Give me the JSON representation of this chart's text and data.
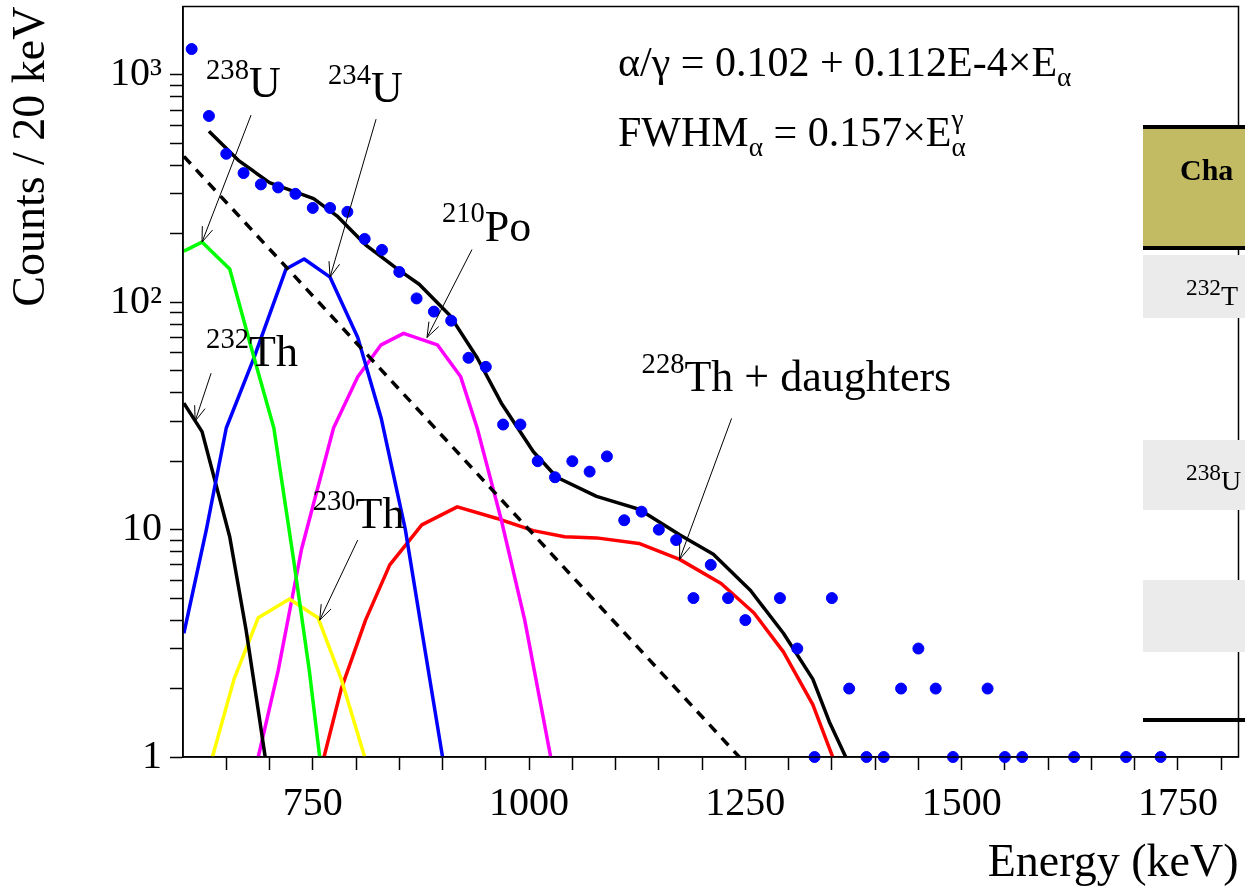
{
  "chart_data": {
    "type": "line",
    "xlabel": "Energy (keV)",
    "ylabel": "Counts / 20 keV",
    "log": "y",
    "grid": false,
    "legend": false,
    "xlim": [
      600,
      1820
    ],
    "xticks": [
      {
        "value": 650,
        "label": null
      },
      {
        "value": 700,
        "label": null
      },
      750,
      {
        "value": 800,
        "label": null
      },
      {
        "value": 850,
        "label": null
      },
      {
        "value": 900,
        "label": null
      },
      {
        "value": 950,
        "label": null
      },
      1000,
      {
        "value": 1050,
        "label": null
      },
      {
        "value": 1100,
        "label": null
      },
      {
        "value": 1150,
        "label": null
      },
      {
        "value": 1200,
        "label": null
      },
      1250,
      {
        "value": 1300,
        "label": null
      },
      {
        "value": 1350,
        "label": null
      },
      {
        "value": 1400,
        "label": null
      },
      {
        "value": 1450,
        "label": null
      },
      1500,
      {
        "value": 1550,
        "label": null
      },
      {
        "value": 1600,
        "label": null
      },
      {
        "value": 1650,
        "label": null
      },
      {
        "value": 1700,
        "label": null
      },
      1750,
      {
        "value": 1800,
        "label": null
      }
    ],
    "ylim": [
      1,
      2000
    ],
    "yticks": [
      1,
      {
        "value": 2,
        "label": null
      },
      {
        "value": 3,
        "label": null
      },
      {
        "value": 4,
        "label": null
      },
      {
        "value": 5,
        "label": null
      },
      {
        "value": 6,
        "label": null
      },
      {
        "value": 7,
        "label": null
      },
      {
        "value": 8,
        "label": null
      },
      {
        "value": 9,
        "label": null
      },
      10,
      {
        "value": 20,
        "label": null
      },
      {
        "value": 30,
        "label": null
      },
      {
        "value": 40,
        "label": null
      },
      {
        "value": 50,
        "label": null
      },
      {
        "value": 60,
        "label": null
      },
      {
        "value": 70,
        "label": null
      },
      {
        "value": 80,
        "label": null
      },
      {
        "value": 90,
        "label": null
      },
      {
        "value": 100,
        "label": "10²"
      },
      {
        "value": 200,
        "label": null
      },
      {
        "value": 300,
        "label": null
      },
      {
        "value": 400,
        "label": null
      },
      {
        "value": 500,
        "label": null
      },
      {
        "value": 600,
        "label": null
      },
      {
        "value": 700,
        "label": null
      },
      {
        "value": 800,
        "label": null
      },
      {
        "value": 900,
        "label": null
      },
      {
        "value": 1000,
        "label": "10³"
      }
    ],
    "series": [
      {
        "type": "scatter",
        "color": "#0000ff",
        "marker": "circle",
        "x": [
          610,
          630,
          650,
          670,
          690,
          710,
          730,
          750,
          770,
          790,
          810,
          830,
          850,
          870,
          890,
          910,
          930,
          950,
          970,
          990,
          1010,
          1030,
          1050,
          1070,
          1090,
          1110,
          1130,
          1150,
          1170,
          1190,
          1210,
          1230,
          1250,
          1290,
          1310,
          1330,
          1350,
          1370,
          1390,
          1410,
          1430,
          1450,
          1470,
          1490,
          1530,
          1550,
          1570,
          1630,
          1690,
          1730
        ],
        "values": [
          1300,
          660,
          450,
          370,
          330,
          320,
          300,
          260,
          260,
          250,
          190,
          170,
          136,
          104,
          91,
          83,
          57,
          52,
          29,
          29,
          20,
          17,
          20,
          18,
          21,
          11,
          12,
          10,
          9,
          5,
          7,
          5,
          4,
          5,
          3,
          1,
          5,
          2,
          1,
          1,
          2,
          3,
          2,
          1,
          2,
          1,
          1,
          1,
          1,
          1
        ]
      },
      {
        "color": "#000000",
        "marker": "none",
        "line_style": "solid",
        "x": [
          630,
          664,
          700,
          751,
          779,
          811,
          848,
          873,
          908,
          940,
          968,
          1005,
          1032,
          1078,
          1127,
          1174,
          1213,
          1256,
          1294,
          1328,
          1347,
          1366
        ],
        "values": [
          565,
          421,
          336,
          286,
          238,
          179,
          140,
          120,
          88,
          57,
          36,
          22,
          17,
          14,
          12.3,
          9.5,
          7.8,
          5.4,
          3.5,
          2.2,
          1.43,
          1
        ]
      },
      {
        "color": "#000000",
        "marker": "none",
        "line_style": "dashed",
        "x": [
          601,
          1243
        ],
        "values": [
          438,
          1
        ]
      },
      {
        "color": "#00ff00",
        "marker": "none",
        "line_style": "solid",
        "x": [
          601,
          622,
          654,
          677,
          705,
          728,
          746,
          758
        ],
        "values": [
          168,
          184,
          140,
          67,
          28,
          7.3,
          2.4,
          1
        ]
      },
      {
        "color": "#0000ff",
        "marker": "none",
        "line_style": "solid",
        "x": [
          601,
          627,
          650,
          682,
          719,
          740,
          770,
          802,
          829,
          857,
          876,
          900
        ],
        "values": [
          3.5,
          10,
          28,
          57,
          140,
          155,
          129,
          70,
          31,
          10,
          3.6,
          1
        ]
      },
      {
        "color": "#000000",
        "marker": "none",
        "line_style": "solid",
        "x": [
          601,
          622,
          654,
          673,
          687,
          695
        ],
        "values": [
          36,
          27,
          9.3,
          3.6,
          1.6,
          1
        ]
      },
      {
        "color": "#ffff00",
        "marker": "none",
        "line_style": "solid",
        "x": [
          634,
          659,
          687,
          723,
          756,
          783,
          810
        ],
        "values": [
          1,
          2.2,
          4.1,
          4.95,
          4.1,
          2.2,
          1
        ]
      },
      {
        "color": "#ff00ff",
        "marker": "none",
        "line_style": "solid",
        "x": [
          687,
          710,
          737,
          774,
          802,
          829,
          855,
          894,
          921,
          940,
          968,
          995,
          1025
        ],
        "values": [
          1,
          2.4,
          8.2,
          28,
          47,
          65,
          73,
          65,
          47,
          28,
          11,
          4,
          1
        ]
      },
      {
        "color": "#ff0000",
        "marker": "none",
        "line_style": "solid",
        "x": [
          763,
          783,
          811,
          839,
          876,
          917,
          963,
          1005,
          1041,
          1078,
          1127,
          1174,
          1222,
          1260,
          1294,
          1328,
          1351
        ],
        "values": [
          1,
          2,
          4,
          7,
          10.5,
          12.6,
          11.2,
          9.9,
          9.3,
          9.2,
          8.7,
          7.4,
          5.8,
          4.3,
          2.9,
          1.7,
          1
        ]
      }
    ],
    "annotations": [
      {
        "text": "$^{238}$U",
        "x": 622,
        "y": 184
      },
      {
        "text": "$^{234}$U",
        "x": 770,
        "y": 129
      },
      {
        "text": "$^{210}$Po",
        "x": 882,
        "y": 70
      },
      {
        "text": "$^{232}$Th",
        "x": 614,
        "y": 30
      },
      {
        "text": "$^{230}$Th",
        "x": 758,
        "y": 4
      },
      {
        "text": "$^{228}$Th + daughters",
        "x": 1174,
        "y": 7.4
      },
      "α/γ = 0.102 + 0.112E-4×E$_{α}$",
      "FWHM$_{α}$ = 0.157×E$_{α}$$^{γ}$",
      "Cha",
      "$^{232}$T",
      "$^{238}$U"
    ]
  }
}
